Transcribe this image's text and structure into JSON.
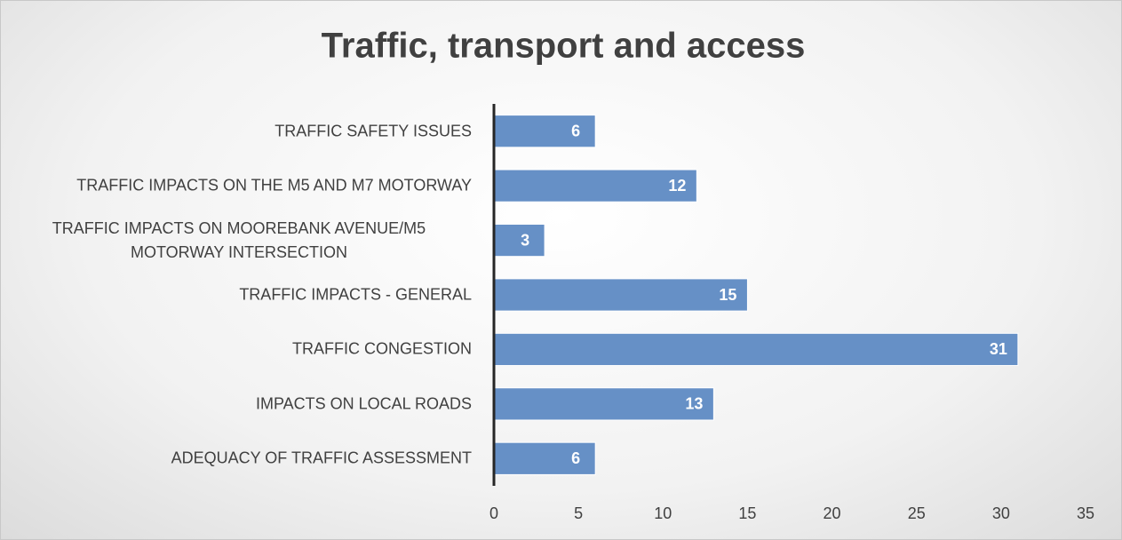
{
  "chart_data": {
    "type": "bar",
    "orientation": "horizontal",
    "title": "Traffic, transport and access",
    "categories": [
      "TRAFFIC SAFETY ISSUES",
      "TRAFFIC IMPACTS ON THE M5 AND M7 MOTORWAY",
      "TRAFFIC IMPACTS ON MOOREBANK AVENUE/M5 MOTORWAY INTERSECTION",
      "TRAFFIC IMPACTS - GENERAL",
      "TRAFFIC CONGESTION",
      "IMPACTS ON LOCAL ROADS",
      "ADEQUACY OF TRAFFIC ASSESSMENT"
    ],
    "values": [
      6,
      12,
      3,
      15,
      31,
      13,
      6
    ],
    "color": "#6690c6",
    "xlim": [
      0,
      35
    ],
    "xticks": [
      0,
      5,
      10,
      15,
      20,
      25,
      30,
      35
    ],
    "grid": false
  }
}
